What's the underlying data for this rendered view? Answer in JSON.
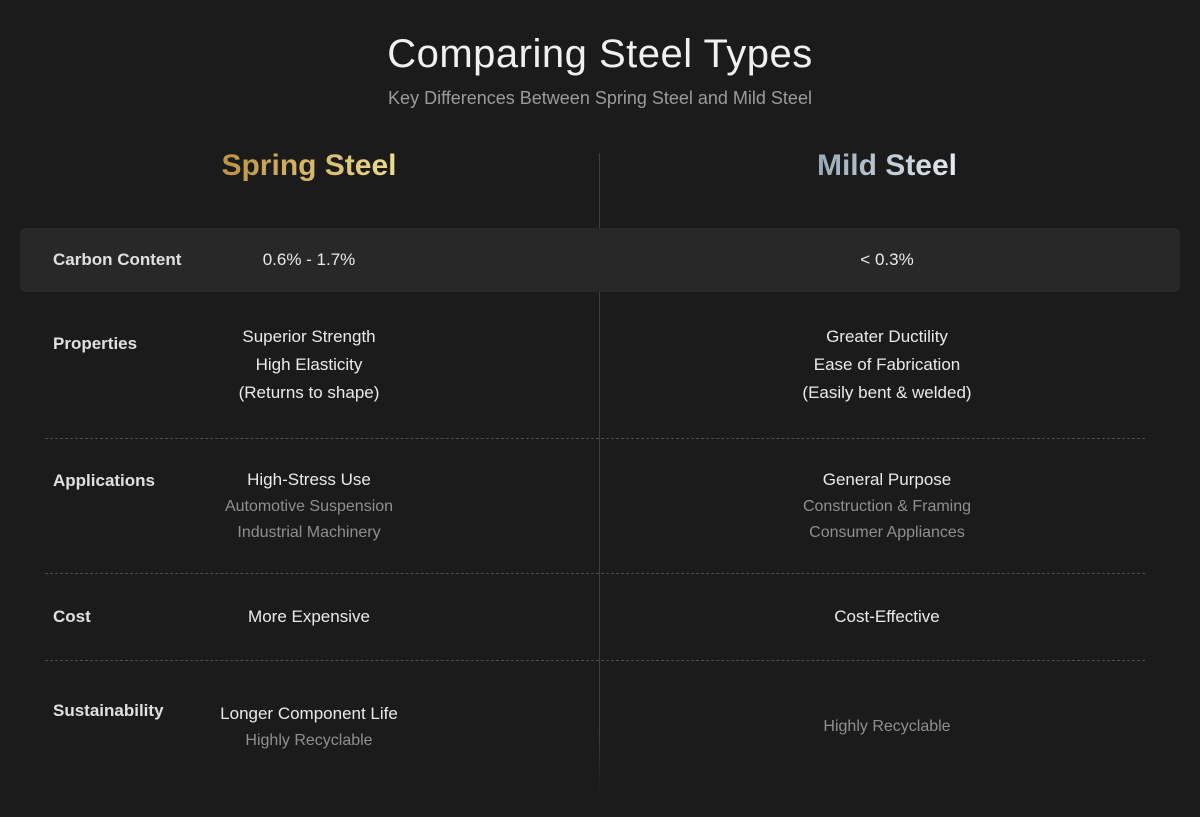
{
  "header": {
    "title": "Comparing Steel Types",
    "subtitle": "Key Differences Between Spring Steel and Mild Steel"
  },
  "columns": {
    "spring": {
      "label": "Spring Steel"
    },
    "mild": {
      "label": "Mild Steel"
    }
  },
  "rows": [
    {
      "label": "Carbon Content",
      "highlighted": true,
      "spring": {
        "primary": [
          "0.6% - 1.7%"
        ],
        "secondary": []
      },
      "mild": {
        "primary": [
          "< 0.3%"
        ],
        "secondary": []
      }
    },
    {
      "label": "Properties",
      "highlighted": false,
      "spring": {
        "primary": [
          "Superior Strength",
          "High Elasticity",
          "(Returns to shape)"
        ],
        "secondary": []
      },
      "mild": {
        "primary": [
          "Greater Ductility",
          "Ease of Fabrication",
          "(Easily bent & welded)"
        ],
        "secondary": []
      }
    },
    {
      "label": "Applications",
      "highlighted": false,
      "spring": {
        "primary": [
          "High-Stress Use"
        ],
        "secondary": [
          "Automotive Suspension",
          "Industrial Machinery"
        ]
      },
      "mild": {
        "primary": [
          "General Purpose"
        ],
        "secondary": [
          "Construction & Framing",
          "Consumer Appliances"
        ]
      }
    },
    {
      "label": "Cost",
      "highlighted": false,
      "spring": {
        "primary": [
          "More Expensive"
        ],
        "secondary": []
      },
      "mild": {
        "primary": [
          "Cost-Effective"
        ],
        "secondary": []
      }
    },
    {
      "label": "Sustainability",
      "highlighted": false,
      "spring": {
        "primary": [
          "Longer Component Life"
        ],
        "secondary": [
          "Highly Recyclable"
        ]
      },
      "mild": {
        "primary": [],
        "secondary": [
          "Highly Recyclable"
        ]
      }
    }
  ],
  "colors": {
    "background": "#1b1b1b",
    "row_highlight": "#282828",
    "title": "#f0f0f0",
    "subtitle": "#9b9b9b",
    "label": "#e0e0e0",
    "text_primary": "#eaeaea",
    "text_secondary": "#8f8f8f",
    "center_divider": "#404040",
    "dashed_divider": "#4d4d4d",
    "spring_gradient": [
      "#bd9243",
      "#ecdc8d"
    ],
    "mild_gradient": [
      "#97a9b9",
      "#e6ecf1"
    ]
  }
}
